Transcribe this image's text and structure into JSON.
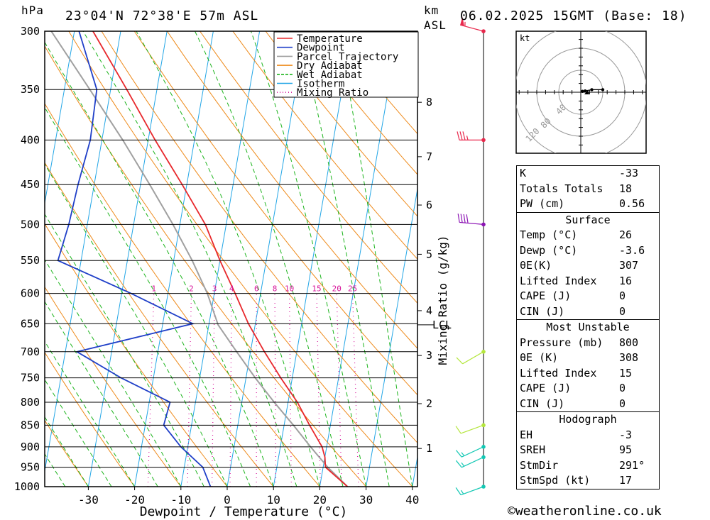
{
  "header": {
    "pressure_unit": "hPa",
    "location": "23°04'N 72°38'E 57m ASL",
    "km_label": "km",
    "asl_label": "ASL",
    "datetime": "06.02.2025 15GMT (Base: 18)"
  },
  "colors": {
    "temperature": "#e8282c",
    "dewpoint": "#1f3fc8",
    "parcel": "#a0a0a0",
    "dry_adiabat": "#ee8a1a",
    "wet_adiabat": "#1cb41c",
    "isotherm": "#23a6e6",
    "mixing_ratio": "#d8189c",
    "wind_levels": [
      "#e8284c",
      "#e8284c",
      "#8c14b4",
      "#b4e63c",
      "#b4e63c",
      "#14c8b4",
      "#14c8b4",
      "#14c8b4"
    ]
  },
  "chart_data": {
    "type": "skew-t",
    "xlabel": "Dewpoint / Temperature (°C)",
    "ylabel": "hPa",
    "mixing_ratio_axis_label": "Mixing Ratio (g/kg)",
    "xlim": [
      -40,
      40
    ],
    "x_ticks": [
      -30,
      -20,
      -10,
      0,
      10,
      20,
      30,
      40
    ],
    "pressure_levels": [
      300,
      350,
      400,
      450,
      500,
      550,
      600,
      650,
      700,
      750,
      800,
      850,
      900,
      950,
      1000
    ],
    "height_km_ticks": [
      {
        "km": "1",
        "p": 904
      },
      {
        "km": "2",
        "p": 803
      },
      {
        "km": "3",
        "p": 707
      },
      {
        "km": "4",
        "p": 628
      },
      {
        "km": "5",
        "p": 541
      },
      {
        "km": "6",
        "p": 475
      },
      {
        "km": "7",
        "p": 418
      },
      {
        "km": "8",
        "p": 362
      }
    ],
    "lcl": {
      "label": "LCL",
      "p": 652
    },
    "mixing_ratio_labels": [
      "1",
      "2",
      "3",
      "4",
      "6",
      "8",
      "10",
      "15",
      "20",
      "25"
    ],
    "legend": [
      "Temperature",
      "Dewpoint",
      "Parcel Trajectory",
      "Dry Adiabat",
      "Wet Adiabat",
      "Isotherm",
      "Mixing Ratio"
    ],
    "temperature": [
      {
        "p": 1000,
        "t": 26.0
      },
      {
        "p": 950,
        "t": 20.5
      },
      {
        "p": 925,
        "t": 20.0
      },
      {
        "p": 900,
        "t": 19.0
      },
      {
        "p": 850,
        "t": 15.5
      },
      {
        "p": 800,
        "t": 12.0
      },
      {
        "p": 750,
        "t": 7.5
      },
      {
        "p": 700,
        "t": 3.0
      },
      {
        "p": 650,
        "t": -1.5
      },
      {
        "p": 600,
        "t": -5.5
      },
      {
        "p": 550,
        "t": -10.0
      },
      {
        "p": 500,
        "t": -14.5
      },
      {
        "p": 450,
        "t": -21.0
      },
      {
        "p": 400,
        "t": -28.5
      },
      {
        "p": 350,
        "t": -36.5
      },
      {
        "p": 300,
        "t": -46.0
      }
    ],
    "dewpoint": [
      {
        "p": 1000,
        "t": -3.6
      },
      {
        "p": 950,
        "t": -6.0
      },
      {
        "p": 900,
        "t": -11.5
      },
      {
        "p": 850,
        "t": -16.0
      },
      {
        "p": 800,
        "t": -15.5
      },
      {
        "p": 750,
        "t": -27.0
      },
      {
        "p": 700,
        "t": -37.5
      },
      {
        "p": 650,
        "t": -13.5
      },
      {
        "p": 600,
        "t": -28.0
      },
      {
        "p": 550,
        "t": -45.0
      },
      {
        "p": 500,
        "t": -44.0
      },
      {
        "p": 450,
        "t": -43.5
      },
      {
        "p": 400,
        "t": -42.5
      },
      {
        "p": 350,
        "t": -43.0
      },
      {
        "p": 300,
        "t": -49.0
      }
    ],
    "parcel": [
      {
        "p": 1000,
        "t": 26.0
      },
      {
        "p": 950,
        "t": 21.0
      },
      {
        "p": 900,
        "t": 16.5
      },
      {
        "p": 850,
        "t": 12.0
      },
      {
        "p": 800,
        "t": 7.0
      },
      {
        "p": 750,
        "t": 2.0
      },
      {
        "p": 700,
        "t": -3.0
      },
      {
        "p": 652,
        "t": -8.0
      },
      {
        "p": 600,
        "t": -11.5
      },
      {
        "p": 550,
        "t": -16.0
      },
      {
        "p": 500,
        "t": -21.5
      },
      {
        "p": 450,
        "t": -28.0
      },
      {
        "p": 400,
        "t": -35.5
      },
      {
        "p": 350,
        "t": -44.5
      },
      {
        "p": 300,
        "t": -55.0
      }
    ],
    "winds": [
      {
        "p": 300,
        "dir": 285,
        "kt": 55
      },
      {
        "p": 400,
        "dir": 270,
        "kt": 35
      },
      {
        "p": 500,
        "dir": 275,
        "kt": 40
      },
      {
        "p": 700,
        "dir": 240,
        "kt": 10
      },
      {
        "p": 850,
        "dir": 250,
        "kt": 10
      },
      {
        "p": 900,
        "dir": 245,
        "kt": 15
      },
      {
        "p": 925,
        "dir": 245,
        "kt": 15
      },
      {
        "p": 1000,
        "dir": 250,
        "kt": 15
      }
    ],
    "hodograph": {
      "unit": "kt",
      "ring_labels": [
        "40",
        "80",
        "120"
      ],
      "points": [
        {
          "u": 1.5,
          "v": 0.8
        },
        {
          "u": 4,
          "v": 1.2
        },
        {
          "u": 10,
          "v": 2.3
        },
        {
          "u": 20,
          "v": 2.3
        }
      ]
    }
  },
  "indices": {
    "general": [
      {
        "label": "K",
        "value": "-33"
      },
      {
        "label": "Totals Totals",
        "value": "18"
      },
      {
        "label": "PW (cm)",
        "value": "0.56"
      }
    ],
    "surface": {
      "title": "Surface",
      "rows": [
        {
          "label": "Temp (°C)",
          "value": "26"
        },
        {
          "label": "Dewp (°C)",
          "value": "-3.6"
        },
        {
          "label": "θE(K)",
          "value": "307"
        },
        {
          "label": "Lifted Index",
          "value": "16"
        },
        {
          "label": "CAPE (J)",
          "value": "0"
        },
        {
          "label": "CIN (J)",
          "value": "0"
        }
      ]
    },
    "most_unstable": {
      "title": "Most Unstable",
      "rows": [
        {
          "label": "Pressure (mb)",
          "value": "800"
        },
        {
          "label": "θE (K)",
          "value": "308"
        },
        {
          "label": "Lifted Index",
          "value": "15"
        },
        {
          "label": "CAPE (J)",
          "value": "0"
        },
        {
          "label": "CIN (J)",
          "value": "0"
        }
      ]
    },
    "hodograph": {
      "title": "Hodograph",
      "rows": [
        {
          "label": "EH",
          "value": "-3"
        },
        {
          "label": "SREH",
          "value": "95"
        },
        {
          "label": "StmDir",
          "value": "291°"
        },
        {
          "label": "StmSpd (kt)",
          "value": "17"
        }
      ]
    }
  },
  "credit": "©weatheronline.co.uk"
}
